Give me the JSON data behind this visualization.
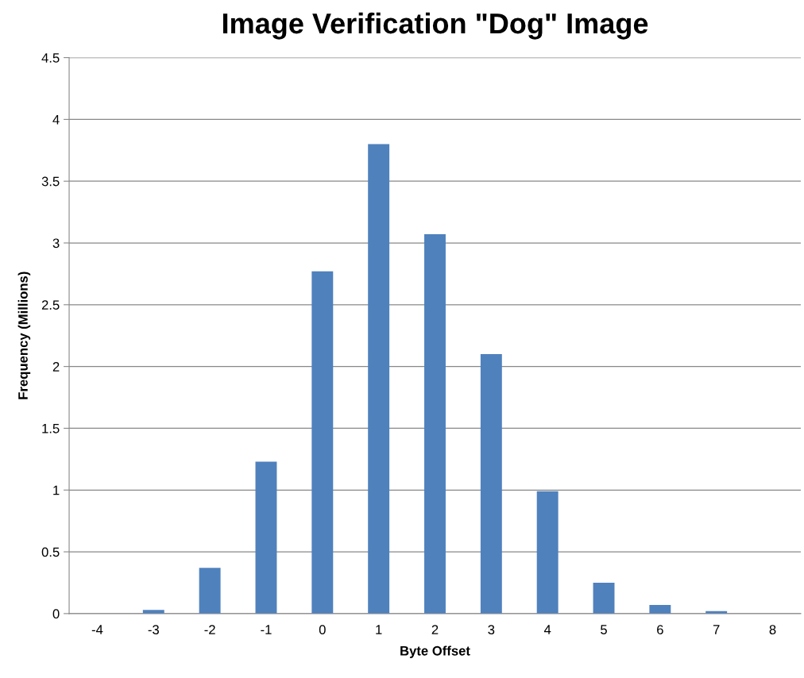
{
  "chart_data": {
    "type": "bar",
    "title": "Image Verification \"Dog\" Image",
    "xlabel": "Byte Offset",
    "ylabel": "Frequency (Millions)",
    "categories": [
      "-4",
      "-3",
      "-2",
      "-1",
      "0",
      "1",
      "2",
      "3",
      "4",
      "5",
      "6",
      "7",
      "8"
    ],
    "values": [
      0,
      0.03,
      0.37,
      1.23,
      2.77,
      3.8,
      3.07,
      2.1,
      0.99,
      0.25,
      0.07,
      0.02,
      0
    ],
    "color": "#4f81bd",
    "ylim": [
      0,
      4.5
    ],
    "yticks": [
      0,
      0.5,
      1,
      1.5,
      2,
      2.5,
      3,
      3.5,
      4,
      4.5
    ],
    "grid": "y",
    "legend": false
  }
}
